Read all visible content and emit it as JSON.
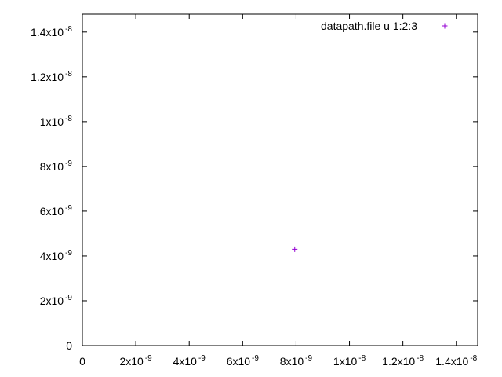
{
  "chart_data": {
    "type": "scatter",
    "title": "",
    "xlabel": "",
    "ylabel": "",
    "xlim": [
      0,
      1.48e-08
    ],
    "ylim": [
      0,
      1.48e-08
    ],
    "x_ticks": [
      {
        "value": 0,
        "base": "0",
        "exp": ""
      },
      {
        "value": 2e-09,
        "base": "2x10",
        "exp": "-9"
      },
      {
        "value": 4e-09,
        "base": "4x10",
        "exp": "-9"
      },
      {
        "value": 6e-09,
        "base": "6x10",
        "exp": "-9"
      },
      {
        "value": 8e-09,
        "base": "8x10",
        "exp": "-9"
      },
      {
        "value": 1e-08,
        "base": "1x10",
        "exp": "-8"
      },
      {
        "value": 1.2e-08,
        "base": "1.2x10",
        "exp": "-8"
      },
      {
        "value": 1.4e-08,
        "base": "1.4x10",
        "exp": "-8"
      }
    ],
    "y_ticks": [
      {
        "value": 0,
        "base": "0",
        "exp": ""
      },
      {
        "value": 2e-09,
        "base": "2x10",
        "exp": "-9"
      },
      {
        "value": 4e-09,
        "base": "4x10",
        "exp": "-9"
      },
      {
        "value": 6e-09,
        "base": "6x10",
        "exp": "-9"
      },
      {
        "value": 8e-09,
        "base": "8x10",
        "exp": "-9"
      },
      {
        "value": 1e-08,
        "base": "1x10",
        "exp": "-8"
      },
      {
        "value": 1.2e-08,
        "base": "1.2x10",
        "exp": "-8"
      },
      {
        "value": 1.4e-08,
        "base": "1.4x10",
        "exp": "-8"
      }
    ],
    "series": [
      {
        "name": "datapath.file u 1:2:3",
        "color": "#9400d3",
        "marker": "plus",
        "points": [
          {
            "x": 7.95e-09,
            "y": 4.3e-09
          }
        ]
      }
    ],
    "legend": "top-right",
    "grid": false
  }
}
